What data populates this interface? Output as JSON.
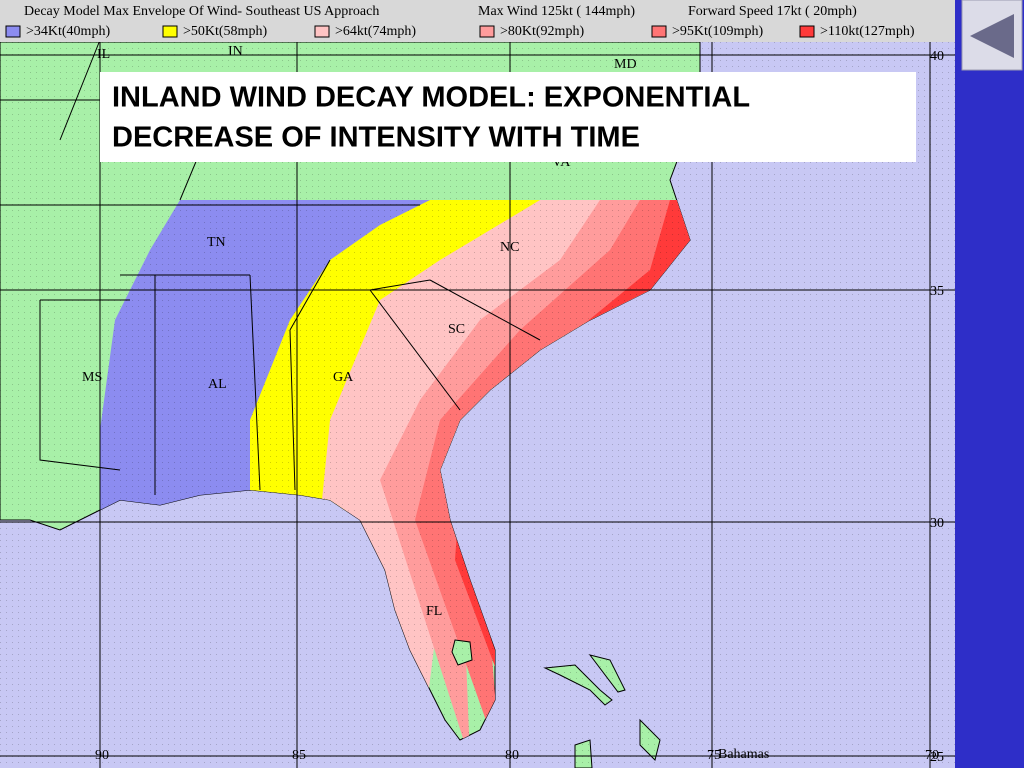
{
  "header": {
    "title": "Decay Model Max Envelope Of Wind- Southeast US Approach",
    "max_wind": "Max Wind  125kt ( 144mph)",
    "forward_speed": "Forward Speed  17kt ( 20mph)"
  },
  "legend": [
    {
      "label": ">34Kt(40mph)",
      "color": "#8c8cf0"
    },
    {
      "label": ">50Kt(58mph)",
      "color": "#ffff00"
    },
    {
      "label": ">64kt(74mph)",
      "color": "#ffc4c4"
    },
    {
      "label": ">80Kt(92mph)",
      "color": "#ff9c9c"
    },
    {
      "label": ">95Kt(109mph)",
      "color": "#ff7474"
    },
    {
      "label": ">110kt(127mph)",
      "color": "#ff3a3a"
    }
  ],
  "overlay": {
    "lines": [
      "INLAND  WIND  DECAY  MODEL:  EXPONENTIAL",
      "DECREASE  OF  INTENSITY  WITH  TIME"
    ]
  },
  "states": [
    "IL",
    "IN",
    "MD",
    "VA",
    "TN",
    "NC",
    "SC",
    "MS",
    "AL",
    "GA",
    "FL",
    "Bahamas"
  ],
  "latitudes": [
    40,
    35,
    30,
    25
  ],
  "longitudes": [
    90,
    85,
    80,
    75,
    70
  ]
}
